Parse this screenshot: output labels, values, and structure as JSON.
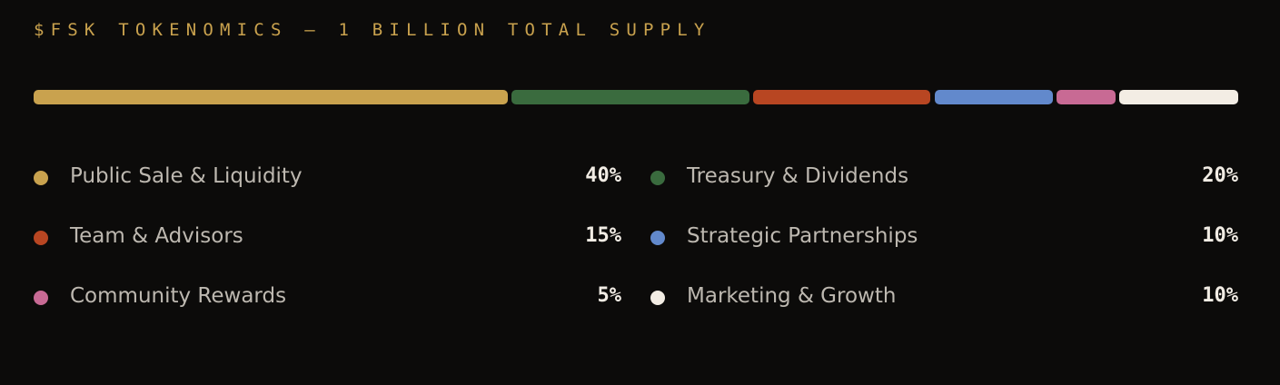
{
  "title": "$FSK TOKENOMICS — 1 BILLION TOTAL SUPPLY",
  "chart_data": {
    "type": "bar",
    "orientation": "horizontal-stacked",
    "categories": [
      "Public Sale & Liquidity",
      "Treasury & Dividends",
      "Team & Advisors",
      "Strategic Partnerships",
      "Community Rewards",
      "Marketing & Growth"
    ],
    "values": [
      40,
      20,
      15,
      10,
      5,
      10
    ],
    "value_labels": [
      "40%",
      "20%",
      "15%",
      "10%",
      "5%",
      "10%"
    ],
    "colors": [
      "#c9a24e",
      "#3a6b3e",
      "#b84622",
      "#6289cc",
      "#c86a94",
      "#f3ede4"
    ],
    "legend_placement": "below"
  }
}
